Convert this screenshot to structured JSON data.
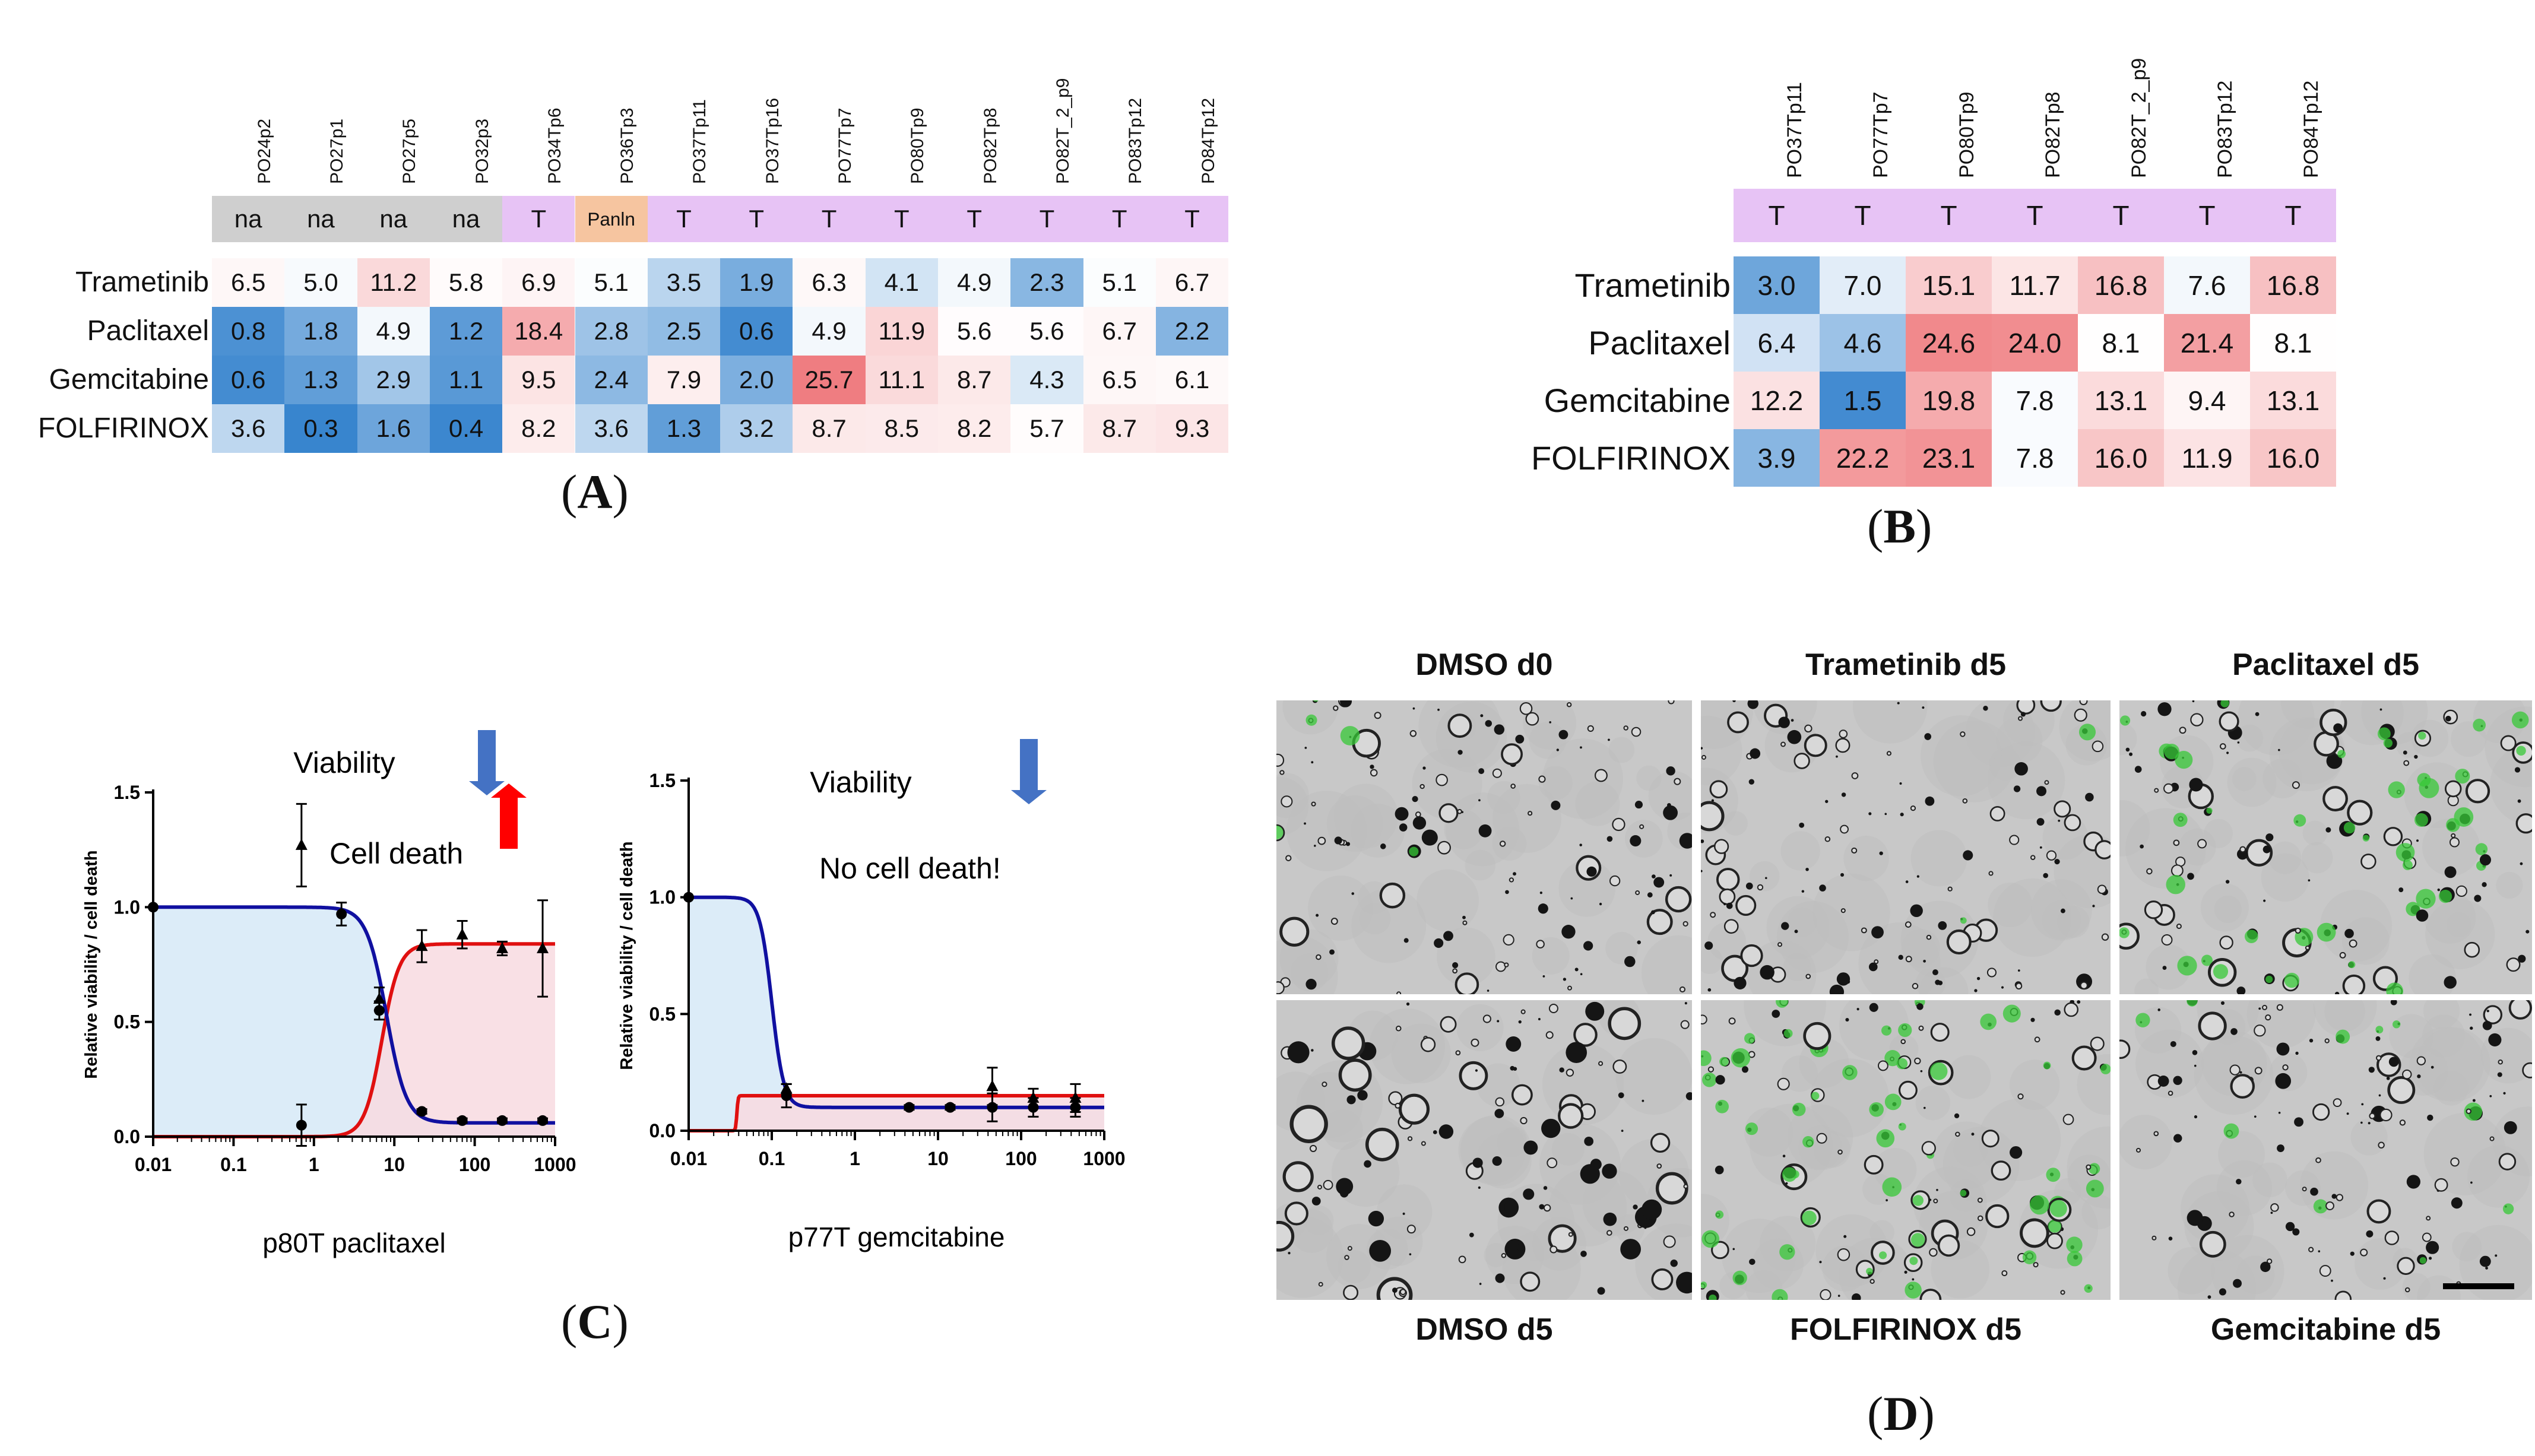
{
  "colors": {
    "na": "#cfcfcf",
    "panin": "#f6c5a0",
    "tumor": "#e7c3f5",
    "viability_fill": "#dcecf8",
    "death_fill": "#f8dbe0",
    "viability_line": "#1010a0",
    "death_line": "#e01010",
    "arrow_blue": "#4472c4",
    "arrow_red": "#ff0000",
    "green_stain": "#37c837"
  },
  "panel_a": {
    "label": "A",
    "columns": [
      "PO24p2",
      "PO27p1",
      "PO27p5",
      "PO32p3",
      "PO34Tp6",
      "PO36Tp3",
      "PO37Tp11",
      "PO37Tp16",
      "PO77Tp7",
      "PO80Tp9",
      "PO82Tp8",
      "PO82T_2_p9",
      "PO83Tp12",
      "PO84Tp12"
    ],
    "tags": [
      "na",
      "na",
      "na",
      "na",
      "T",
      "Panln",
      "T",
      "T",
      "T",
      "T",
      "T",
      "T",
      "T",
      "T"
    ],
    "rows": [
      {
        "drug": "Trametinib",
        "values": [
          "6.5",
          "5.0",
          "11.2",
          "5.8",
          "6.9",
          "5.1",
          "3.5",
          "1.9",
          "6.3",
          "4.1",
          "4.9",
          "2.3",
          "5.1",
          "6.7"
        ]
      },
      {
        "drug": "Paclitaxel",
        "values": [
          "0.8",
          "1.8",
          "4.9",
          "1.2",
          "18.4",
          "2.8",
          "2.5",
          "0.6",
          "4.9",
          "11.9",
          "5.6",
          "5.6",
          "6.7",
          "2.2"
        ]
      },
      {
        "drug": "Gemcitabine",
        "values": [
          "0.6",
          "1.3",
          "2.9",
          "1.1",
          "9.5",
          "2.4",
          "7.9",
          "2.0",
          "25.7",
          "11.1",
          "8.7",
          "4.3",
          "6.5",
          "6.1"
        ]
      },
      {
        "drug": "FOLFIRINOX",
        "values": [
          "3.6",
          "0.3",
          "1.6",
          "0.4",
          "8.2",
          "3.6",
          "1.3",
          "3.2",
          "8.7",
          "8.5",
          "8.2",
          "5.7",
          "8.7",
          "9.3"
        ]
      }
    ]
  },
  "panel_b": {
    "label": "B",
    "columns": [
      "PO37Tp11",
      "PO77Tp7",
      "PO80Tp9",
      "PO82Tp8",
      "PO82T_2_p9",
      "PO83Tp12",
      "PO84Tp12"
    ],
    "tags": [
      "T",
      "T",
      "T",
      "T",
      "T",
      "T",
      "T"
    ],
    "rows": [
      {
        "drug": "Trametinib",
        "values": [
          "3.0",
          "7.0",
          "15.1",
          "11.7",
          "16.8",
          "7.6",
          "16.8"
        ]
      },
      {
        "drug": "Paclitaxel",
        "values": [
          "6.4",
          "4.6",
          "24.6",
          "24.0",
          "8.1",
          "21.4",
          "8.1"
        ]
      },
      {
        "drug": "Gemcitabine",
        "values": [
          "12.2",
          "1.5",
          "19.8",
          "7.8",
          "13.1",
          "9.4",
          "13.1"
        ]
      },
      {
        "drug": "FOLFIRINOX",
        "values": [
          "3.9",
          "22.2",
          "23.1",
          "7.8",
          "16.0",
          "11.9",
          "16.0"
        ]
      }
    ]
  },
  "panel_c": {
    "label": "C",
    "chart_data": [
      {
        "type": "line",
        "title": "p80T paclitaxel",
        "xlabel": "",
        "ylabel": "Relative viability / cell death",
        "xscale": "log",
        "xlim": [
          0.01,
          1000
        ],
        "ylim": [
          0,
          1.5
        ],
        "xticks": [
          "0.01",
          "0.1",
          "1",
          "10",
          "100",
          "1000"
        ],
        "yticks": [
          "0.0",
          "0.5",
          "1.0",
          "1.5"
        ],
        "annotations": [
          "Viability",
          "Cell death"
        ],
        "series": [
          {
            "name": "Viability",
            "curve": {
              "top": 1.0,
              "bottom": 0.06,
              "ec50": 8,
              "hill": 3.5
            },
            "x": [
              0.01,
              0.7,
              2.2,
              6.5,
              22,
              70,
              220,
              700
            ],
            "y": [
              1.0,
              0.05,
              0.97,
              0.55,
              0.11,
              0.07,
              0.07,
              0.07
            ],
            "err": [
              0,
              0.09,
              0.05,
              0.04,
              0.01,
              0.01,
              0.01,
              0.01
            ]
          },
          {
            "name": "Cell death",
            "curve": {
              "top": 0.84,
              "bottom": 0.0,
              "ec50": 7,
              "hill": 4
            },
            "x": [
              0.7,
              6.5,
              22,
              70,
              220,
              700
            ],
            "y": [
              1.27,
              0.6,
              0.83,
              0.88,
              0.82,
              0.82
            ],
            "err": [
              0.18,
              0.05,
              0.07,
              0.06,
              0.03,
              0.21
            ]
          }
        ]
      },
      {
        "type": "line",
        "title": "p77T gemcitabine",
        "xlabel": "",
        "ylabel": "Relative viability / cell death",
        "xscale": "log",
        "xlim": [
          0.01,
          1000
        ],
        "ylim": [
          0,
          1.5
        ],
        "xticks": [
          "0.01",
          "0.1",
          "1",
          "10",
          "100",
          "1000"
        ],
        "yticks": [
          "0.0",
          "0.5",
          "1.0",
          "1.5"
        ],
        "annotations": [
          "Viability",
          "No cell death!"
        ],
        "series": [
          {
            "name": "Viability",
            "curve": {
              "top": 1.0,
              "bottom": 0.1,
              "ec50": 0.1,
              "hill": 6
            },
            "x": [
              0.01,
              0.15,
              4.5,
              14,
              45,
              140,
              450
            ],
            "y": [
              1.0,
              0.15,
              0.1,
              0.1,
              0.1,
              0.1,
              0.1
            ],
            "err": [
              0,
              0.05,
              0.01,
              0.01,
              0.06,
              0.04,
              0.04
            ]
          },
          {
            "name": "Cell death",
            "curve": {
              "top": 0.15,
              "bottom": 0.0,
              "ec50": 0.038,
              "hill": 60
            },
            "x": [
              0.15,
              45,
              140,
              450
            ],
            "y": [
              0.18,
              0.19,
              0.14,
              0.14
            ],
            "err": [
              0.02,
              0.08,
              0.04,
              0.06
            ]
          }
        ]
      }
    ]
  },
  "panel_d": {
    "label": "D",
    "top_titles": [
      "DMSO d0",
      "Trametinib d5",
      "Paclitaxel d5"
    ],
    "bottom_titles": [
      "DMSO d5",
      "FOLFIRINOX d5",
      "Gemcitabine d5"
    ],
    "green_level": [
      0.03,
      0.02,
      0.35,
      0.0,
      0.45,
      0.05
    ]
  }
}
